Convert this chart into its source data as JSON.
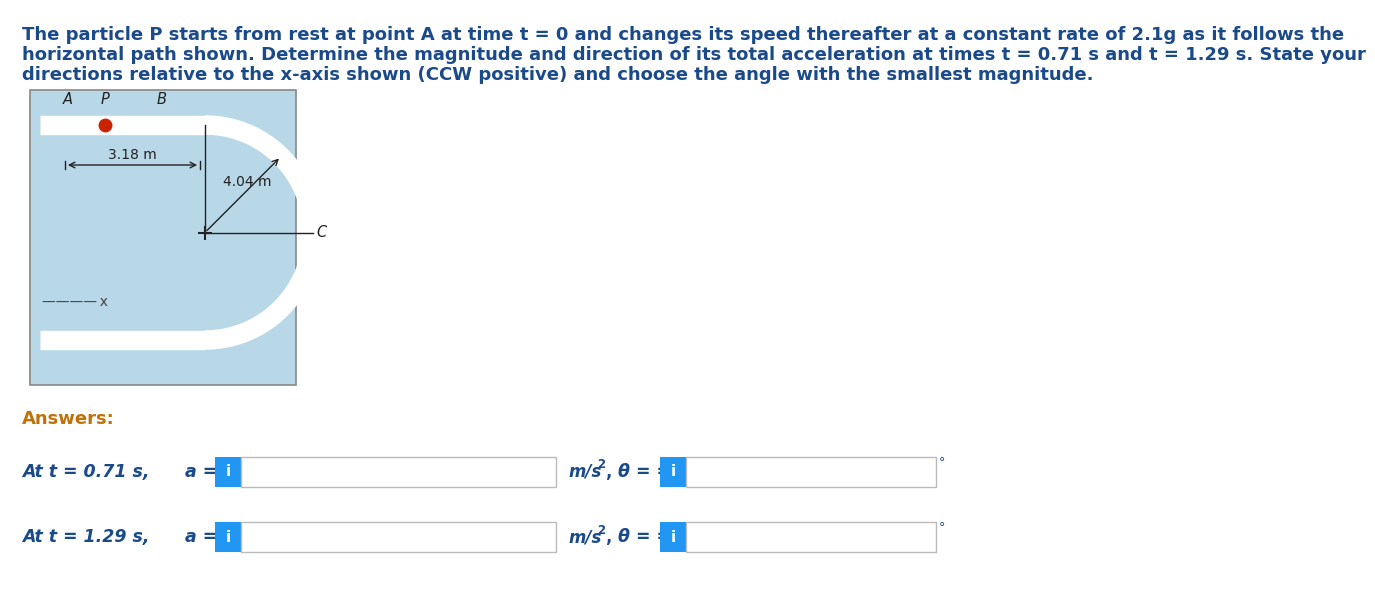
{
  "title_line1": "The particle P starts from rest at point A at time t = 0 and changes its speed thereafter at a constant rate of 2.1g as it follows the",
  "title_line2": "horizontal path shown. Determine the magnitude and direction of its total acceleration at times t = 0.71 s and t = 1.29 s. State your",
  "title_line3": "directions relative to the x-axis shown (CCW positive) and choose the angle with the smallest magnitude.",
  "title_color": "#1a4a8a",
  "background_color": "#ffffff",
  "diagram_bg_color": "#b8d8e8",
  "label_A": "A",
  "label_P": "P",
  "label_B": "B",
  "label_C": "C",
  "label_318": "3.18 m",
  "label_404": "4.04 m",
  "answers_label": "Answers:",
  "row1_label": "At t = 0.71 s,",
  "row2_label": "At t = 1.29 s,",
  "a_eq": "a =",
  "theta_eq": "θ =",
  "ms2_text": "m/s",
  "degree_symbol": "°",
  "box_color": "#2196f3",
  "box_text": "i",
  "input_border_color": "#bbbbbb",
  "text_color": "#1a4a8a",
  "answers_color": "#c0720a",
  "path_color": "#ffffff",
  "label_color": "#222222",
  "dash_color": "#444444"
}
